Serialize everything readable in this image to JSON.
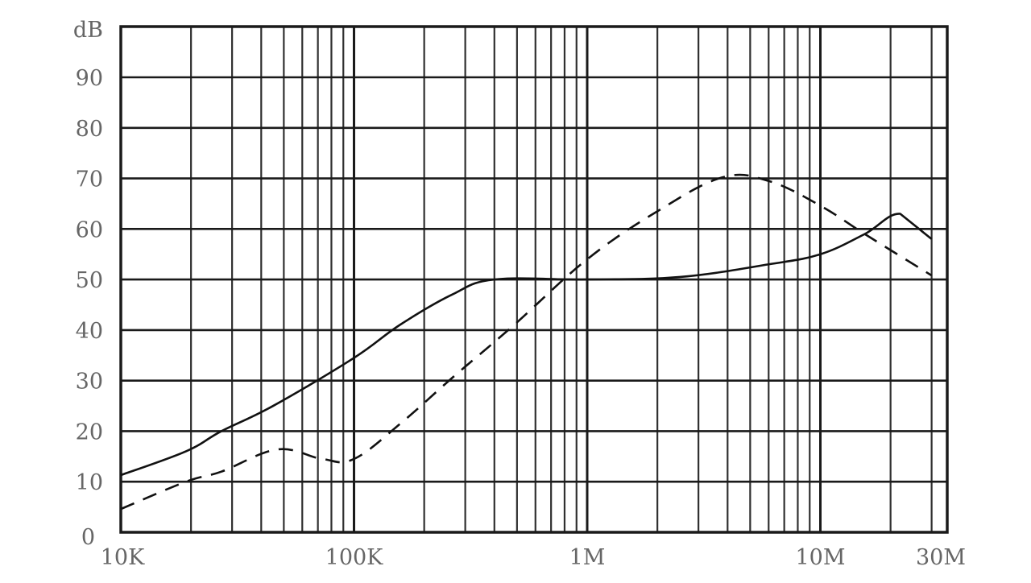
{
  "chart_data": {
    "type": "line",
    "title": "",
    "xlabel": "",
    "ylabel": "dB",
    "x_scale": "log",
    "xlim": [
      10000,
      30000000
    ],
    "ylim": [
      0,
      95
    ],
    "grid": true,
    "legend": null,
    "y_ticks": [
      0,
      10,
      20,
      30,
      40,
      50,
      60,
      70,
      80,
      90
    ],
    "y_unit_label": "dB",
    "x_ticks": [
      {
        "value": 10000,
        "label": "10K"
      },
      {
        "value": 100000,
        "label": "100K"
      },
      {
        "value": 1000000,
        "label": "1M"
      },
      {
        "value": 10000000,
        "label": "10M"
      },
      {
        "value": 30000000,
        "label": "30M"
      }
    ],
    "series": [
      {
        "name": "solid",
        "style": "solid",
        "x": [
          10000,
          19000,
          27000,
          45000,
          100000,
          157000,
          263000,
          400000,
          1000000,
          2500000,
          6000000,
          10000000,
          15500000,
          22000000,
          30000000
        ],
        "y": [
          11.3,
          16,
          20,
          25,
          34.5,
          41,
          47,
          50,
          50,
          50.5,
          53,
          55,
          59,
          63,
          58
        ]
      },
      {
        "name": "dashed",
        "style": "dashed",
        "x": [
          10000,
          19000,
          27000,
          47000,
          73000,
          100000,
          160000,
          263000,
          480000,
          1000000,
          2000000,
          3800000,
          6000000,
          10000000,
          15500000,
          30000000
        ],
        "y": [
          4.6,
          10,
          12,
          16.4,
          14.5,
          14.5,
          21.7,
          30.5,
          40.8,
          54,
          63.5,
          70.2,
          69.5,
          64.6,
          59,
          50.8
        ]
      }
    ]
  },
  "colors": {
    "grid": "#1a1a1a",
    "curve": "#111111",
    "label": "#666666",
    "background": "#ffffff"
  }
}
